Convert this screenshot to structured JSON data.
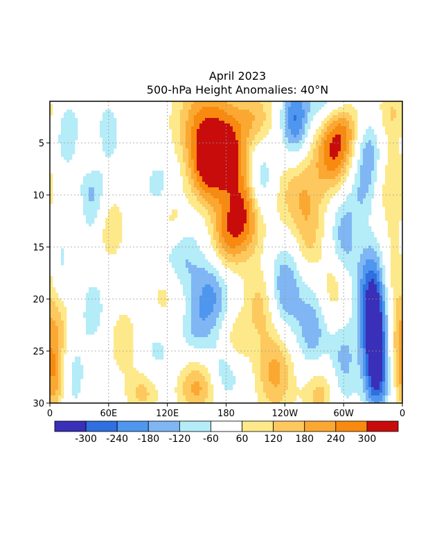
{
  "chart_data": {
    "type": "heatmap",
    "title": "April 2023",
    "subtitle": "500-hPa Height Anomalies: 40°N",
    "x_ticks": [
      "0",
      "60E",
      "120E",
      "180",
      "120W",
      "60W",
      "0"
    ],
    "y_ticks": [
      "5",
      "10",
      "15",
      "20",
      "25",
      "30"
    ],
    "y_range": [
      1,
      30
    ],
    "x_range_deg": [
      0,
      360
    ],
    "grid": "dotted",
    "contour_levels": [
      -300,
      -240,
      -180,
      -120,
      -60,
      60,
      120,
      180,
      240,
      300
    ],
    "colorbar_labels": [
      "-300",
      "-240",
      "-180",
      "-120",
      "-60",
      "60",
      "120",
      "180",
      "240",
      "300"
    ],
    "colorbar_colors": [
      "#3a2fb8",
      "#2f6fe0",
      "#4f96ee",
      "#7fb6f3",
      "#b4ecf8",
      "#ffffff",
      "#fde98a",
      "#fdc95e",
      "#fba832",
      "#f88a0f",
      "#c80c0c"
    ],
    "features": [
      {
        "lon": 18,
        "day": 4.5,
        "amp": -120,
        "w": 10,
        "h": 2.5
      },
      {
        "lon": 42,
        "day": 10.5,
        "amp": -170,
        "w": 12,
        "h": 3
      },
      {
        "lon": 10,
        "day": 16,
        "amp": -120,
        "w": 10,
        "h": 3
      },
      {
        "lon": 45,
        "day": 21,
        "amp": -90,
        "w": 10,
        "h": 2.5
      },
      {
        "lon": 20,
        "day": 27,
        "amp": -110,
        "w": 12,
        "h": 3
      },
      {
        "lon": 60,
        "day": 4,
        "amp": -110,
        "w": 8,
        "h": 2
      },
      {
        "lon": 112,
        "day": 9,
        "amp": -90,
        "w": 12,
        "h": 2
      },
      {
        "lon": 130,
        "day": 16,
        "amp": -150,
        "w": 16,
        "h": 2.5
      },
      {
        "lon": 165,
        "day": 19.5,
        "amp": -190,
        "w": 14,
        "h": 2.5
      },
      {
        "lon": 150,
        "day": 23,
        "amp": -110,
        "w": 12,
        "h": 2
      },
      {
        "lon": 110,
        "day": 25,
        "amp": -80,
        "w": 12,
        "h": 2
      },
      {
        "lon": 180,
        "day": 27,
        "amp": -120,
        "w": 12,
        "h": 2
      },
      {
        "lon": 215,
        "day": 9,
        "amp": -190,
        "w": 10,
        "h": 2.5
      },
      {
        "lon": 240,
        "day": 19,
        "amp": -190,
        "w": 12,
        "h": 3
      },
      {
        "lon": 268,
        "day": 23,
        "amp": -160,
        "w": 12,
        "h": 3
      },
      {
        "lon": 300,
        "day": 26,
        "amp": -140,
        "w": 10,
        "h": 3
      },
      {
        "lon": 250,
        "day": 3,
        "amp": -240,
        "w": 10,
        "h": 2.5
      },
      {
        "lon": 325,
        "day": 6,
        "amp": -180,
        "w": 10,
        "h": 2.5
      },
      {
        "lon": 318,
        "day": 10,
        "amp": -90,
        "w": 10,
        "h": 2
      },
      {
        "lon": 332,
        "day": 23,
        "amp": -330,
        "w": 10,
        "h": 3
      },
      {
        "lon": 328,
        "day": 18.5,
        "amp": -220,
        "w": 10,
        "h": 3
      },
      {
        "lon": 334,
        "day": 27.5,
        "amp": -280,
        "w": 9,
        "h": 2.5
      },
      {
        "lon": 300,
        "day": 14,
        "amp": -160,
        "w": 10,
        "h": 3
      },
      {
        "lon": 285,
        "day": 1,
        "amp": -150,
        "w": 18,
        "h": 2
      },
      {
        "lon": 160,
        "day": 3,
        "amp": 250,
        "w": 22,
        "h": 3
      },
      {
        "lon": 162,
        "day": 7.5,
        "amp": 300,
        "w": 14,
        "h": 2.5
      },
      {
        "lon": 200,
        "day": 11.5,
        "amp": 290,
        "w": 14,
        "h": 3
      },
      {
        "lon": 185,
        "day": 6,
        "amp": 200,
        "w": 12,
        "h": 2.5
      },
      {
        "lon": 210,
        "day": 2.5,
        "amp": 150,
        "w": 14,
        "h": 2
      },
      {
        "lon": 290,
        "day": 6,
        "amp": 270,
        "w": 14,
        "h": 2.5
      },
      {
        "lon": 300,
        "day": 3,
        "amp": 180,
        "w": 14,
        "h": 2
      },
      {
        "lon": 255,
        "day": 10,
        "amp": 170,
        "w": 18,
        "h": 3
      },
      {
        "lon": 350,
        "day": 2,
        "amp": 120,
        "w": 12,
        "h": 2
      },
      {
        "lon": 350,
        "day": 9,
        "amp": 120,
        "w": 12,
        "h": 3
      },
      {
        "lon": 60,
        "day": 13,
        "amp": 130,
        "w": 12,
        "h": 2.5
      },
      {
        "lon": 25,
        "day": 12,
        "amp": 100,
        "w": 10,
        "h": 3
      },
      {
        "lon": 75,
        "day": 24,
        "amp": 100,
        "w": 12,
        "h": 2.5
      },
      {
        "lon": 125,
        "day": 12.5,
        "amp": 120,
        "w": 10,
        "h": 2
      },
      {
        "lon": 118,
        "day": 19,
        "amp": 110,
        "w": 12,
        "h": 2.5
      },
      {
        "lon": 180,
        "day": 14,
        "amp": 200,
        "w": 12,
        "h": 2.5
      },
      {
        "lon": 215,
        "day": 20.5,
        "amp": 140,
        "w": 12,
        "h": 2.5
      },
      {
        "lon": 230,
        "day": 27,
        "amp": 200,
        "w": 14,
        "h": 3
      },
      {
        "lon": 275,
        "day": 29,
        "amp": 160,
        "w": 12,
        "h": 2
      },
      {
        "lon": 265,
        "day": 14.5,
        "amp": 100,
        "w": 10,
        "h": 2.5
      },
      {
        "lon": 290,
        "day": 19,
        "amp": 120,
        "w": 10,
        "h": 2.5
      },
      {
        "lon": 10,
        "day": 23,
        "amp": 130,
        "w": 10,
        "h": 3
      },
      {
        "lon": 5,
        "day": 28,
        "amp": 210,
        "w": 8,
        "h": 2.5
      },
      {
        "lon": 355,
        "day": 24,
        "amp": 140,
        "w": 10,
        "h": 3
      },
      {
        "lon": 355,
        "day": 17,
        "amp": 120,
        "w": 10,
        "h": 3
      },
      {
        "lon": 150,
        "day": 28.5,
        "amp": 200,
        "w": 14,
        "h": 2
      },
      {
        "lon": 95,
        "day": 29,
        "amp": 140,
        "w": 12,
        "h": 1.5
      },
      {
        "lon": 40,
        "day": 6,
        "amp": 90,
        "w": 10,
        "h": 1.5
      },
      {
        "lon": 190,
        "day": 24,
        "amp": 120,
        "w": 10,
        "h": 2
      }
    ]
  }
}
